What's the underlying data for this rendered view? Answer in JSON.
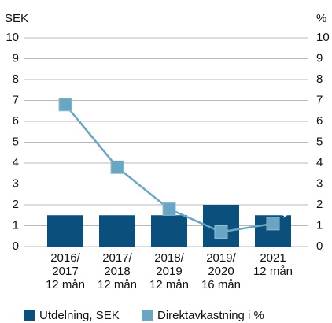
{
  "chart_data": {
    "type": "bar_line",
    "y_label": "SEK",
    "y2_label": "%",
    "categories": [
      [
        "2016/",
        "2017",
        "12 mån"
      ],
      [
        "2017/",
        "2018",
        "12 mån"
      ],
      [
        "2018/",
        "2019",
        "12 mån"
      ],
      [
        "2019/",
        "2020",
        "16 mån"
      ],
      [
        "2021",
        "12 mån"
      ]
    ],
    "series": [
      {
        "name": "Utdelning, SEK",
        "color": "#0b4f7c",
        "values": [
          1.5,
          1.5,
          1.5,
          2,
          1.5
        ]
      },
      {
        "name": "Direktavkastning i %",
        "color": "#6aa6c4",
        "axis": "y2",
        "values": [
          6.8,
          3.8,
          1.8,
          0.7,
          1.1
        ]
      }
    ],
    "annotation": "*",
    "ylim": [
      0,
      10
    ],
    "yticks": [
      0,
      1,
      2,
      3,
      4,
      5,
      6,
      7,
      8,
      9,
      10
    ],
    "y2lim": [
      0,
      10
    ],
    "y2ticks": [
      0,
      1,
      2,
      3,
      4,
      5,
      6,
      7,
      8,
      9,
      10
    ],
    "grid": true
  }
}
